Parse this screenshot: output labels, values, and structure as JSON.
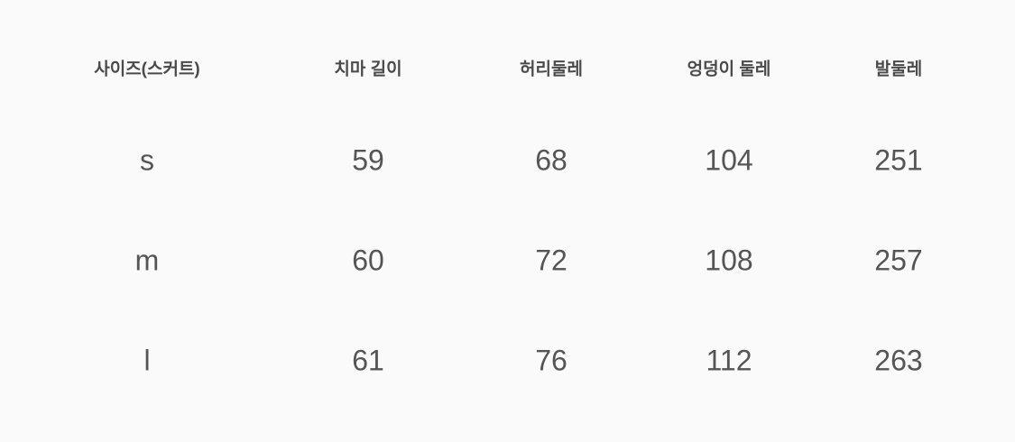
{
  "table": {
    "headers": [
      "사이즈(스커트)",
      "치마 길이",
      "허리둘레",
      "엉덩이 둘레",
      "발둘레"
    ],
    "rows": [
      [
        "s",
        "59",
        "68",
        "104",
        "251"
      ],
      [
        "m",
        "60",
        "72",
        "108",
        "257"
      ],
      [
        "l",
        "61",
        "76",
        "112",
        "263"
      ]
    ]
  }
}
